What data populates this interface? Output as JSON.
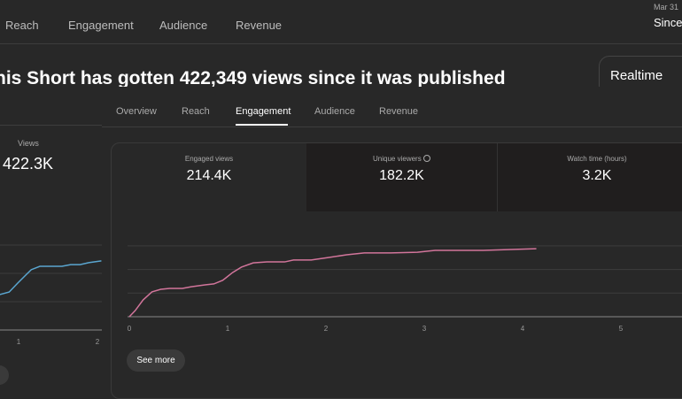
{
  "top_tabs": [
    "Reach",
    "Engagement",
    "Audience",
    "Revenue"
  ],
  "date_range": {
    "date": "Mar 31",
    "label": "Since"
  },
  "title": "his Short has gotten 422,349 views since it was published",
  "realtime": {
    "label": "Realtime"
  },
  "left_metric": {
    "label": "Views",
    "value": "422.3K"
  },
  "sub_tabs": [
    {
      "label": "Overview"
    },
    {
      "label": "Reach"
    },
    {
      "label": "Engagement",
      "active": true
    },
    {
      "label": "Audience"
    },
    {
      "label": "Revenue"
    }
  ],
  "metrics": [
    {
      "label": "Engaged views",
      "value": "214.4K",
      "selected": true
    },
    {
      "label": "Unique viewers",
      "value": "182.2K",
      "icon": "clock-icon"
    },
    {
      "label": "Watch time (hours)",
      "value": "3.2K"
    }
  ],
  "see_more": "See more",
  "colors": {
    "views_line": "#5aa6d0",
    "engaged_line": "#d2759b"
  },
  "chart_data": [
    {
      "type": "line",
      "x_ticks": [
        "1",
        "2"
      ],
      "xlim": [
        0.9,
        2.05
      ],
      "grid": true,
      "series": [
        {
          "x": [
            0.76,
            0.88,
            0.99,
            1.08,
            1.16,
            1.27,
            1.55,
            1.66,
            1.78,
            1.89,
            2.05
          ],
          "y": [
            1.25,
            1.34,
            1.66,
            1.91,
            2.13,
            2.25,
            2.25,
            2.31,
            2.31,
            2.38,
            2.44
          ]
        }
      ]
    },
    {
      "type": "line",
      "x_ticks": [
        "0",
        "1",
        "2",
        "3",
        "4",
        "5"
      ],
      "xlim": [
        0,
        5.6
      ],
      "ylim": [
        0,
        3
      ],
      "grid": true,
      "series": [
        {
          "x": [
            0,
            0.06,
            0.14,
            0.23,
            0.32,
            0.41,
            0.54,
            0.63,
            0.77,
            0.86,
            0.95,
            1.05,
            1.14,
            1.26,
            1.4,
            1.58,
            1.67,
            1.85,
            2.03,
            2.21,
            2.39,
            2.66,
            2.93,
            3.11,
            3.6,
            3.92,
            4.14
          ],
          "y": [
            0,
            0.26,
            0.71,
            1.05,
            1.16,
            1.2,
            1.2,
            1.27,
            1.35,
            1.39,
            1.54,
            1.87,
            2.1,
            2.28,
            2.32,
            2.32,
            2.4,
            2.4,
            2.51,
            2.62,
            2.7,
            2.7,
            2.73,
            2.81,
            2.81,
            2.85,
            2.88
          ]
        }
      ]
    }
  ]
}
